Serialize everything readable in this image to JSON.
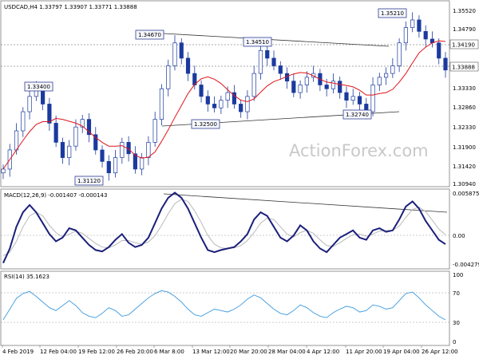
{
  "chart_data": [
    {
      "type": "candlestick",
      "title": "USDCAD,H4  1.33797 1.33907 1.33771 1.33888",
      "y_ticks": [
        "1.35520",
        "1.34790",
        "1.34190",
        "1.33888",
        "1.33330",
        "1.32860",
        "1.32330",
        "1.31900",
        "1.31420",
        "1.30940"
      ],
      "x_labels": [
        "4 Feb 2019",
        "12 Feb 04:00",
        "19 Feb 12:00",
        "26 Feb 20:00",
        "6 Mar 8:00",
        "13 Mar 12:00",
        "20 Mar 20:00",
        "28 Mar 04:00",
        "4 Apr 12:00",
        "11 Apr 20:00",
        "19 Apr 04:00",
        "26 Apr 12:00"
      ],
      "annotations": [
        "1.33400",
        "1.31120",
        "1.34670",
        "1.32500",
        "1.34510",
        "1.32740",
        "1.35210"
      ],
      "watermark": "ActionForex.com",
      "current_price": "1.33888",
      "ylim": [
        1.3084,
        1.357
      ],
      "colors": {
        "candle": "#1b3a9e",
        "ma": "#e0141b"
      },
      "closes": [
        1.313,
        1.318,
        1.323,
        1.328,
        1.332,
        1.334,
        1.33,
        1.325,
        1.32,
        1.316,
        1.319,
        1.324,
        1.326,
        1.322,
        1.318,
        1.315,
        1.312,
        1.316,
        1.32,
        1.317,
        1.313,
        1.316,
        1.32,
        1.326,
        1.334,
        1.34,
        1.346,
        1.342,
        1.338,
        1.335,
        1.332,
        1.33,
        1.329,
        1.331,
        1.333,
        1.33,
        1.328,
        1.332,
        1.338,
        1.344,
        1.342,
        1.34,
        1.338,
        1.336,
        1.333,
        1.335,
        1.337,
        1.338,
        1.335,
        1.334,
        1.336,
        1.333,
        1.331,
        1.332,
        1.33,
        1.328,
        1.335,
        1.337,
        1.338,
        1.34,
        1.346,
        1.35,
        1.352,
        1.349,
        1.347,
        1.346,
        1.342,
        1.3389
      ]
    },
    {
      "type": "line",
      "title": "MACD(12,26,9) -0.001407 -0.000143",
      "y_ticks": [
        "0.005875",
        "0.00",
        "-0.004279"
      ],
      "ylim": [
        -0.0048,
        0.0062
      ],
      "series": [
        {
          "values": [
            -0.004,
            -0.002,
            0.001,
            0.003,
            0.004,
            0.003,
            0.0015,
            0.0,
            -0.001,
            -0.0005,
            0.0008,
            0.0005,
            -0.0005,
            -0.0015,
            -0.0022,
            -0.0024,
            -0.0018,
            -0.0008,
            0.0,
            -0.0012,
            -0.0018,
            -0.0015,
            -0.0005,
            0.0015,
            0.0035,
            0.005,
            0.0057,
            0.005,
            0.0035,
            0.0015,
            -0.0005,
            -0.0022,
            -0.0025,
            -0.0022,
            -0.002,
            -0.0018,
            -0.001,
            0.0,
            0.002,
            0.003,
            0.0025,
            0.001,
            -0.0005,
            -0.001,
            -0.0002,
            0.0012,
            0.0005,
            -0.001,
            -0.002,
            -0.0025,
            -0.0015,
            -0.0005,
            0.0,
            0.0005,
            -0.0005,
            -0.0008,
            0.0005,
            0.0008,
            0.0003,
            0.0005,
            0.002,
            0.0038,
            0.0045,
            0.0035,
            0.0018,
            0.0005,
            -0.0008,
            -0.0014
          ]
        },
        {
          "values": [
            -0.003,
            -0.0025,
            -0.001,
            0.001,
            0.0025,
            0.003,
            0.0025,
            0.0012,
            0.0002,
            -0.0004,
            0.0,
            0.0004,
            0.0001,
            -0.0006,
            -0.0013,
            -0.0018,
            -0.0019,
            -0.0015,
            -0.0009,
            -0.0009,
            -0.0012,
            -0.0014,
            -0.0011,
            -0.0002,
            0.0012,
            0.0028,
            0.0042,
            0.0048,
            0.0045,
            0.0032,
            0.0016,
            -0.0002,
            -0.0014,
            -0.0019,
            -0.002,
            -0.0019,
            -0.0016,
            -0.0009,
            0.0002,
            0.0015,
            0.0022,
            0.002,
            0.001,
            0.0,
            -0.0004,
            0.0002,
            0.0005,
            0.0001,
            -0.0008,
            -0.0016,
            -0.0017,
            -0.0012,
            -0.0006,
            -0.0001,
            0.0,
            -0.0003,
            0.0,
            0.0004,
            0.0005,
            0.0005,
            0.0011,
            0.0023,
            0.0034,
            0.0037,
            0.0031,
            0.0019,
            0.0007,
            -0.0001
          ]
        }
      ]
    },
    {
      "type": "line",
      "title": "RSI(14) 35.1623",
      "y_ticks": [
        "100",
        "70",
        "30",
        "0"
      ],
      "ylim": [
        0,
        100
      ],
      "series": [
        {
          "values": [
            35,
            50,
            65,
            72,
            75,
            68,
            60,
            52,
            48,
            55,
            62,
            55,
            45,
            40,
            38,
            44,
            52,
            48,
            40,
            42,
            50,
            58,
            66,
            72,
            76,
            74,
            68,
            60,
            50,
            42,
            40,
            45,
            50,
            48,
            46,
            50,
            56,
            64,
            70,
            66,
            58,
            50,
            44,
            42,
            48,
            56,
            52,
            45,
            40,
            38,
            45,
            50,
            54,
            52,
            46,
            48,
            56,
            54,
            50,
            52,
            62,
            72,
            74,
            66,
            56,
            48,
            40,
            35
          ]
        }
      ]
    }
  ]
}
